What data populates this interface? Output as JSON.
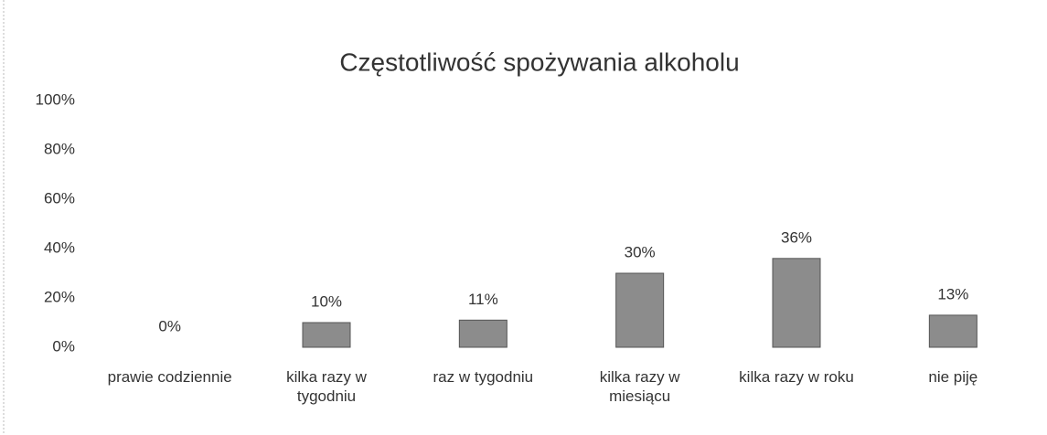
{
  "chart_data": {
    "type": "bar",
    "title": "Częstotliwość spożywania alkoholu",
    "categories": [
      "prawie codziennie",
      "kilka razy w tygodniu",
      "raz w tygodniu",
      "kilka razy w miesiącu",
      "kilka razy w roku",
      "nie piję"
    ],
    "values": [
      0,
      10,
      11,
      30,
      36,
      13
    ],
    "value_labels": [
      "0%",
      "10%",
      "11%",
      "30%",
      "36%",
      "13%"
    ],
    "color": "#8c8c8c",
    "ylim": [
      0,
      100
    ],
    "yticks": [
      {
        "value": 0,
        "label": "0%"
      },
      {
        "value": 20,
        "label": "20%"
      },
      {
        "value": 40,
        "label": "40%"
      },
      {
        "value": 60,
        "label": "60%"
      },
      {
        "value": 80,
        "label": "80%"
      },
      {
        "value": 100,
        "label": "100%"
      }
    ],
    "grid": false
  }
}
